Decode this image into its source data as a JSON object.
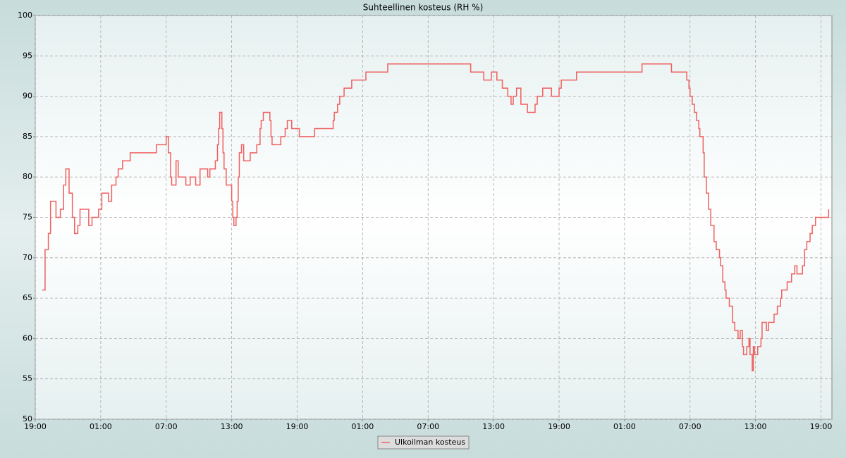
{
  "chart_data": {
    "type": "line",
    "title": "Suhteellinen kosteus (RH %)",
    "step": true,
    "x": [
      0.65,
      0.9,
      1.2,
      1.4,
      1.7,
      1.9,
      2.3,
      2.6,
      2.8,
      3.1,
      3.4,
      3.6,
      3.9,
      4.1,
      4.9,
      5.2,
      5.8,
      6.1,
      6.7,
      7.0,
      7.4,
      7.6,
      8.0,
      8.7,
      9.0,
      11.1,
      12.0,
      12.2,
      12.4,
      12.5,
      12.9,
      13.1,
      13.8,
      14.2,
      14.7,
      15.1,
      15.8,
      16.0,
      16.5,
      16.7,
      16.8,
      16.9,
      17.1,
      17.2,
      17.3,
      17.5,
      18.0,
      18.1,
      18.2,
      18.4,
      18.5,
      18.6,
      18.7,
      18.9,
      19.1,
      19.7,
      20.3,
      20.6,
      20.7,
      20.9,
      21.5,
      21.6,
      21.7,
      22.5,
      22.9,
      23.1,
      23.5,
      24.2,
      25.6,
      27.3,
      27.4,
      27.7,
      27.9,
      28.3,
      29.0,
      30.3,
      32.3,
      39.8,
      39.9,
      41.1,
      41.8,
      42.3,
      42.8,
      43.3,
      43.6,
      43.8,
      44.1,
      44.5,
      45.1,
      45.8,
      46.0,
      46.5,
      47.3,
      48.0,
      48.2,
      49.6,
      53.7,
      53.9,
      55.6,
      58.3,
      59.6,
      59.7,
      59.9,
      60.0,
      60.2,
      60.4,
      60.6,
      60.8,
      60.9,
      61.2,
      61.3,
      61.5,
      61.7,
      61.9,
      62.2,
      62.4,
      62.7,
      62.8,
      63.0,
      63.2,
      63.3,
      63.6,
      63.9,
      64.1,
      64.4,
      64.6,
      64.8,
      64.9,
      65.2,
      65.4,
      65.5,
      65.7,
      65.8,
      65.9,
      66.2,
      66.5,
      66.6,
      67.0,
      67.2,
      67.7,
      68.0,
      68.3,
      68.4,
      68.9,
      69.3,
      69.6,
      69.8,
      70.3,
      70.5,
      70.7,
      71.0,
      71.2,
      71.5,
      72.5,
      72.7
    ],
    "series": [
      {
        "name": "Ulkoilman kosteus",
        "color": "#f06060",
        "values": [
          66,
          71,
          73,
          77,
          77,
          75,
          76,
          79,
          81,
          78,
          75,
          73,
          74,
          76,
          74,
          75,
          76,
          78,
          77,
          79,
          80,
          81,
          82,
          83,
          83,
          84,
          85,
          83,
          80,
          79,
          82,
          80,
          79,
          80,
          79,
          81,
          80,
          81,
          82,
          84,
          86,
          88,
          86,
          83,
          81,
          79,
          77,
          75,
          74,
          75,
          77,
          80,
          83,
          84,
          82,
          83,
          84,
          86,
          87,
          88,
          87,
          85,
          84,
          85,
          86,
          87,
          86,
          85,
          86,
          87,
          88,
          89,
          90,
          91,
          92,
          93,
          94,
          94,
          93,
          92,
          93,
          92,
          91,
          90,
          89,
          90,
          91,
          89,
          88,
          89,
          90,
          91,
          90,
          91,
          92,
          93,
          93,
          93,
          94,
          93,
          93,
          92,
          91,
          90,
          89,
          88,
          87,
          86,
          85,
          83,
          80,
          78,
          76,
          74,
          72,
          71,
          70,
          69,
          67,
          66,
          65,
          64,
          62,
          61,
          60,
          61,
          59,
          58,
          59,
          60,
          58,
          56,
          59,
          58,
          59,
          60,
          62,
          61,
          62,
          63,
          64,
          65,
          66,
          67,
          68,
          69,
          68,
          69,
          71,
          72,
          73,
          74,
          75,
          75,
          76
        ]
      }
    ],
    "xlim": [
      0,
      73
    ],
    "xticks": [
      {
        "value": 0,
        "label": "19:00"
      },
      {
        "value": 6,
        "label": "01:00"
      },
      {
        "value": 12,
        "label": "07:00"
      },
      {
        "value": 18,
        "label": "13:00"
      },
      {
        "value": 24,
        "label": "19:00"
      },
      {
        "value": 30,
        "label": "01:00"
      },
      {
        "value": 36,
        "label": "07:00"
      },
      {
        "value": 42,
        "label": "13:00"
      },
      {
        "value": 48,
        "label": "19:00"
      },
      {
        "value": 54,
        "label": "01:00"
      },
      {
        "value": 60,
        "label": "07:00"
      },
      {
        "value": 66,
        "label": "13:00"
      },
      {
        "value": 72,
        "label": "19:00"
      }
    ],
    "ylim": [
      50,
      100
    ],
    "yticks": [
      50,
      55,
      60,
      65,
      70,
      75,
      80,
      85,
      90,
      95,
      100
    ],
    "grid": true,
    "legend": "bottom"
  }
}
